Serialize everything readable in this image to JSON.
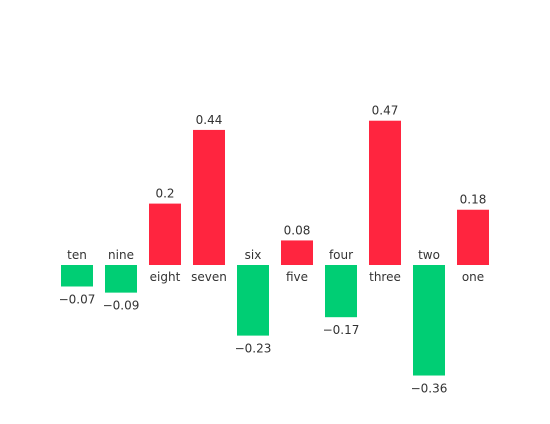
{
  "chart_data": {
    "type": "bar",
    "title": "",
    "xlabel": "",
    "ylabel": "",
    "categories": [
      "ten",
      "nine",
      "eight",
      "seven",
      "six",
      "five",
      "four",
      "three",
      "two",
      "one"
    ],
    "values": [
      -0.07,
      -0.09,
      0.2,
      0.44,
      -0.23,
      0.08,
      -0.17,
      0.47,
      -0.36,
      0.18
    ],
    "value_labels": [
      "−0.07",
      "−0.09",
      "0.2",
      "0.44",
      "−0.23",
      "0.08",
      "−0.17",
      "0.47",
      "−0.36",
      "0.18"
    ],
    "ylim": [
      -0.36,
      0.47
    ],
    "grid": false,
    "legend": "none",
    "colors": {
      "positive": "#ff253f",
      "negative": "#00ce74",
      "text": "#333333"
    }
  }
}
